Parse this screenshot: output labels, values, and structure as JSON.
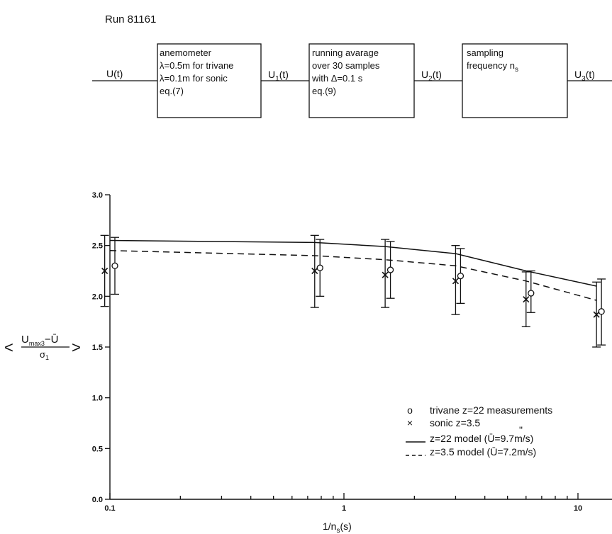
{
  "run_label": "Run 81161",
  "diagram": {
    "signals": {
      "input": "U(t)",
      "s1": "U",
      "s1_sub": "1",
      "s1_tail": "(t)",
      "s2": "U",
      "s2_sub": "2",
      "s2_tail": "(t)",
      "s3": "U",
      "s3_sub": "3",
      "s3_tail": "(t)"
    },
    "blocks": [
      {
        "lines": [
          "anemometer",
          "λ=0.5m for trivane",
          "λ=0.1m for sonic",
          "eq.(7)"
        ]
      },
      {
        "lines": [
          "running avarage",
          "over 30 samples",
          "with Δ=0.1 s",
          "eq.(9)"
        ]
      },
      {
        "lines": [
          "sampling",
          "frequency n",
          ""
        ],
        "sub": "s"
      }
    ]
  },
  "chart_data": {
    "type": "line",
    "x_scale": "log",
    "xlim": [
      0.1,
      15
    ],
    "ylim": [
      0.0,
      3.0
    ],
    "xlabel": "1/n",
    "xlabel_sub": "s",
    "xlabel_tail": "(s)",
    "ylabel": {
      "left": "<",
      "num": "U",
      "num_sub": "max3",
      "num_tail": "−Ū",
      "den": "σ",
      "den_sub": "1",
      "right": ">"
    },
    "y_ticks": [
      "0.0",
      "0.5",
      "1.0",
      "1.5",
      "2.0",
      "2.5",
      "3.0"
    ],
    "y_tick_values": [
      0.0,
      0.5,
      1.0,
      1.5,
      2.0,
      2.5,
      3.0
    ],
    "x_tick_labels": [
      "0.1",
      "1",
      "10"
    ],
    "x_tick_values": [
      0.1,
      1,
      10
    ],
    "grid": false,
    "series": [
      {
        "name": "z=22 model (Ū=9.7m/s)",
        "style": "solid",
        "x": [
          0.1,
          0.75,
          1.5,
          3.0,
          6.0,
          12.0
        ],
        "y": [
          2.55,
          2.53,
          2.49,
          2.42,
          2.25,
          2.1
        ]
      },
      {
        "name": "z=3.5 model (Ū=7.2m/s)",
        "style": "dashed",
        "x": [
          0.1,
          0.75,
          1.5,
          3.0,
          6.0,
          12.0
        ],
        "y": [
          2.45,
          2.4,
          2.36,
          2.3,
          2.15,
          1.96
        ]
      },
      {
        "name": "trivane z=22 measurements",
        "marker": "circle",
        "x": [
          0.105,
          0.79,
          1.58,
          3.15,
          6.3,
          12.6
        ],
        "y": [
          2.3,
          2.28,
          2.26,
          2.2,
          2.03,
          1.85
        ],
        "err_low": [
          2.02,
          2.0,
          1.98,
          1.93,
          1.84,
          1.52
        ],
        "err_high": [
          2.58,
          2.56,
          2.54,
          2.47,
          2.25,
          2.17
        ]
      },
      {
        "name": "sonic z=3.5",
        "marker": "x",
        "x": [
          0.095,
          0.75,
          1.5,
          3.0,
          6.0,
          12.0
        ],
        "y": [
          2.25,
          2.25,
          2.21,
          2.15,
          1.97,
          1.82
        ],
        "err_low": [
          1.9,
          1.89,
          1.89,
          1.82,
          1.7,
          1.5
        ],
        "err_high": [
          2.6,
          2.6,
          2.56,
          2.5,
          2.24,
          2.14
        ]
      }
    ],
    "legend": {
      "placement": "right",
      "rows": [
        {
          "symbol": "o",
          "text": "trivane  z=22   measurements"
        },
        {
          "symbol": "×",
          "text": "sonic    z=3.5"
        },
        {
          "symbol": "solid",
          "text": "z=22  model  (Ū=9.7m/s)"
        },
        {
          "symbol": "dashed",
          "text": "z=3.5  model  (Ū=7.2m/s)"
        }
      ],
      "ditto": "\""
    }
  }
}
